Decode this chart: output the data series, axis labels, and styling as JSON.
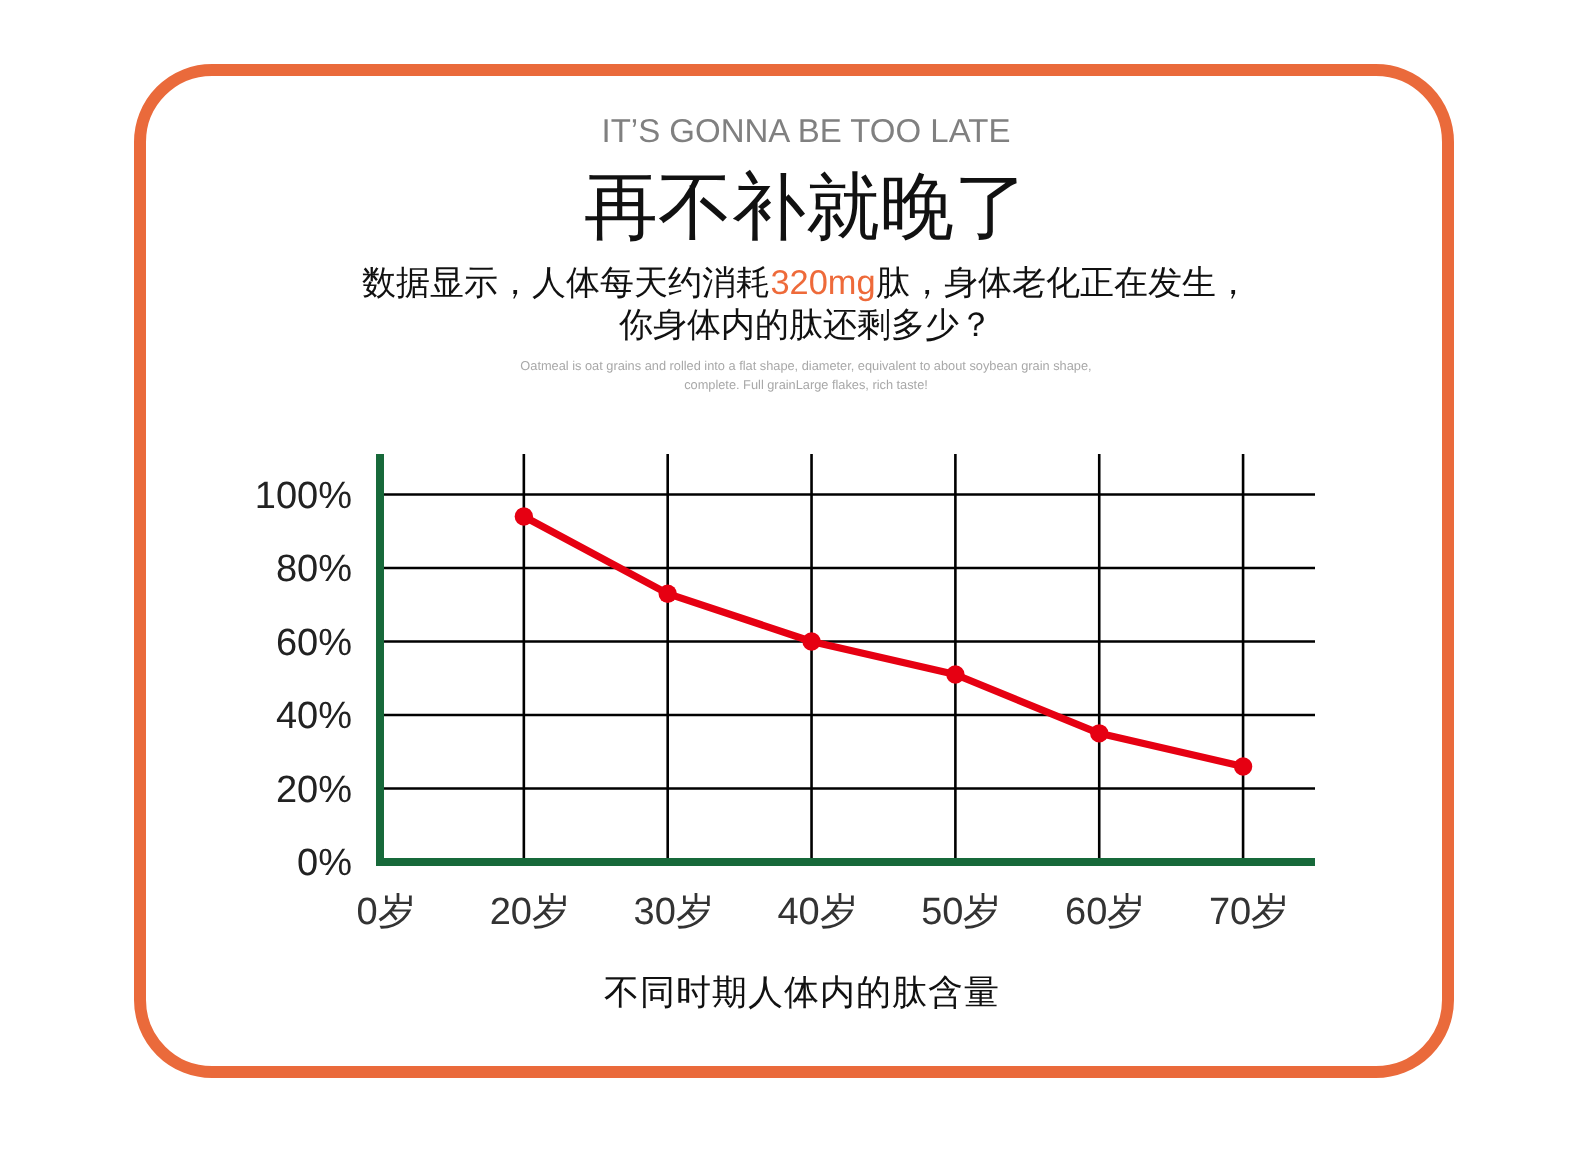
{
  "chart_data": {
    "type": "line",
    "title": "再不补就晚了",
    "subtitle": "数据显示，人体每天约消耗320mg肽，身体老化正在发生，你身体内的肽还剩多少？",
    "annotations": [
      "IT’S GONNA BE TOO LATE",
      "Oatmeal is oat grains and rolled into a flat shape, diameter, equivalent to about soybean grain shape, complete. Full grainLarge flakes, rich taste!"
    ],
    "xlabel": "不同时期人体内的肽含量",
    "categories": [
      "0岁",
      "20岁",
      "30岁",
      "40岁",
      "50岁",
      "60岁",
      "70岁"
    ],
    "series": [
      {
        "color": "#e60012",
        "values": [
          null,
          94,
          73,
          60,
          51,
          35,
          26
        ]
      }
    ],
    "ylim": [
      0,
      111
    ],
    "yticks": [
      {
        "value": 0,
        "label": "0%"
      },
      {
        "value": 20,
        "label": "20%"
      },
      {
        "value": 40,
        "label": "40%"
      },
      {
        "value": 60,
        "label": "60%"
      },
      {
        "value": 80,
        "label": "80%"
      },
      {
        "value": 100,
        "label": "100%"
      }
    ],
    "grid": true,
    "marker": "circle",
    "line_style": "solid"
  }
}
